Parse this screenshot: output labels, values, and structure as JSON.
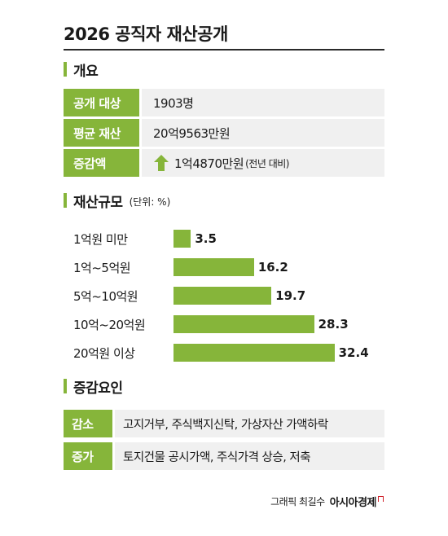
{
  "title": "2026 공직자 재산공개",
  "colors": {
    "accent": "#86b53a",
    "cell_bg": "#f0f0f0"
  },
  "overview": {
    "heading": "개요",
    "rows": [
      {
        "key": "공개 대상",
        "value": "1903명"
      },
      {
        "key": "평균 재산",
        "value": "20억9563만원"
      },
      {
        "key": "증감액",
        "value": "1억4870만원",
        "note": "(전년 대비)",
        "icon": "up-arrow-icon"
      }
    ]
  },
  "chart_data": {
    "type": "bar",
    "orientation": "horizontal",
    "title": "재산규모",
    "unit": "(단위: %)",
    "categories": [
      "1억원 미만",
      "1억~5억원",
      "5억~10억원",
      "10억~20억원",
      "20억원 이상"
    ],
    "values": [
      3.5,
      16.2,
      19.7,
      28.3,
      32.4
    ],
    "grid": false
  },
  "factors": {
    "heading": "증감요인",
    "rows": [
      {
        "key": "감소",
        "value": "고지거부, 주식백지신탁, 가상자산 가액하락"
      },
      {
        "key": "증가",
        "value": "토지건물 공시가액, 주식가격 상승, 저축"
      }
    ]
  },
  "credit": {
    "text": "그래픽 최길수",
    "brand": "아시아경제"
  }
}
